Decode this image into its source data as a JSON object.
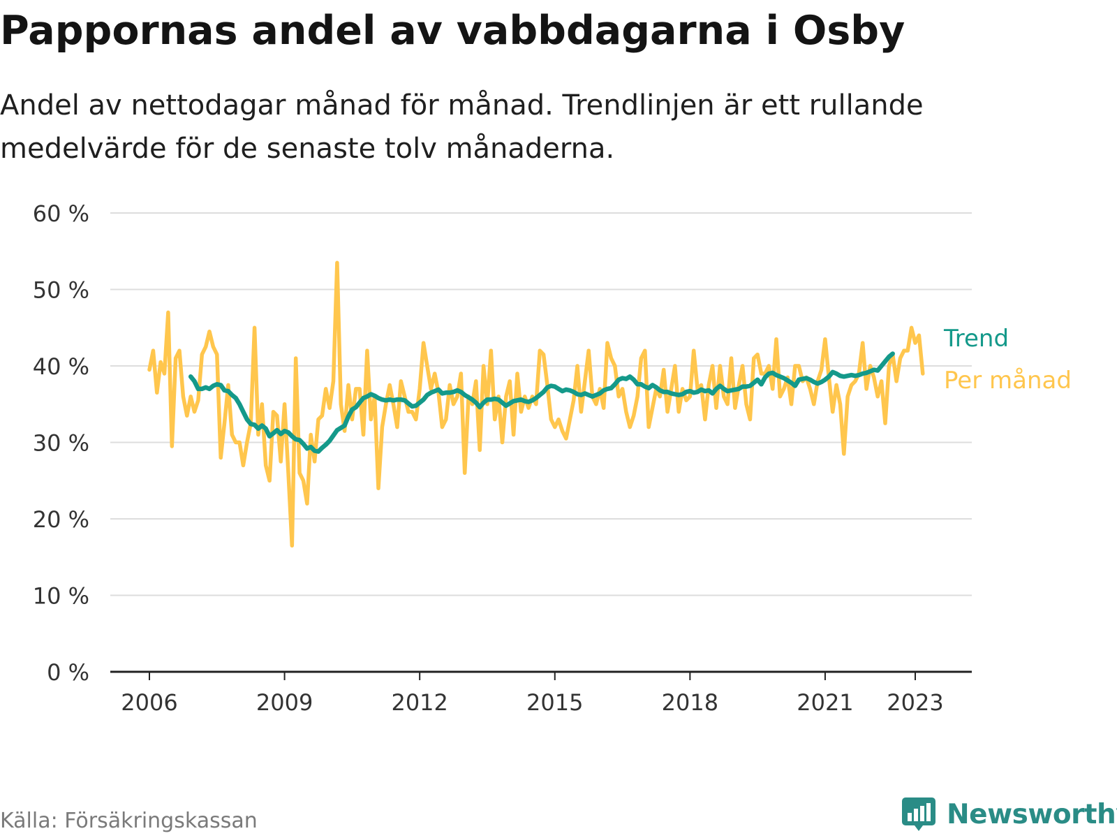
{
  "title": "Pappornas andel av vabbdagarna i Osby",
  "subtitle": "Andel av nettodagar månad för månad. Trendlinjen är ett rullande medelvärde för de senaste tolv månaderna.",
  "source": "Källa: Försäkringskassan",
  "brand": "Newsworthy",
  "colors": {
    "trend": "#14998a",
    "monthly": "#ffc64d",
    "grid": "#dddddd",
    "axis": "#222222",
    "brand": "#2a8c86"
  },
  "chart_data": {
    "type": "line",
    "title": "Pappornas andel av vabbdagarna i Osby",
    "xlabel": "",
    "ylabel": "",
    "xlim": [
      2006,
      2023.9
    ],
    "ylim": [
      0,
      60
    ],
    "x_ticks": [
      2006,
      2009,
      2012,
      2015,
      2018,
      2021,
      2023
    ],
    "x_tick_labels": [
      "2006",
      "2009",
      "2012",
      "2015",
      "2018",
      "2021",
      "2023"
    ],
    "y_ticks": [
      0,
      10,
      20,
      30,
      40,
      50,
      60
    ],
    "y_tick_labels": [
      "0 %",
      "10 %",
      "20 %",
      "30 %",
      "40 %",
      "50 %",
      "60 %"
    ],
    "grid": true,
    "legend": "direct labels at line ends (right)",
    "series": [
      {
        "name": "Per månad",
        "color": "#ffc64d",
        "start": "2006-01",
        "values": [
          39.5,
          42,
          36.5,
          40.5,
          39,
          47,
          29.5,
          41,
          42,
          36,
          33.5,
          36,
          34,
          35.5,
          41.5,
          42.5,
          44.5,
          42.5,
          41.5,
          28,
          32.5,
          37.5,
          31,
          30,
          30,
          27,
          30,
          32.5,
          45,
          31,
          35,
          27,
          25,
          34,
          33.5,
          27.5,
          35,
          26,
          16.5,
          41,
          26,
          25,
          22,
          31,
          27.5,
          33,
          33.5,
          37,
          34.5,
          38,
          53.5,
          35,
          31.5,
          37.5,
          33,
          37,
          37,
          31,
          42,
          33,
          36,
          24,
          32,
          35,
          37.5,
          35,
          32,
          38,
          36,
          34,
          34,
          33,
          37,
          43,
          40,
          37,
          39,
          36.5,
          32,
          33,
          37.5,
          35,
          36,
          39,
          26,
          36,
          35,
          38,
          29,
          40,
          35,
          42,
          33,
          36,
          30,
          36,
          38,
          31,
          39,
          34,
          36,
          34.5,
          36,
          35,
          42,
          41.5,
          37.5,
          33,
          32,
          33,
          31.5,
          30.5,
          33,
          35.5,
          40,
          34,
          38,
          42,
          36,
          35,
          37,
          34.5,
          43,
          41,
          40,
          36,
          37,
          34,
          32,
          33.5,
          36,
          41,
          42,
          32,
          34.5,
          37,
          36,
          39.5,
          34,
          37,
          40,
          34,
          37,
          35.5,
          36,
          42,
          37,
          37.5,
          33,
          37.5,
          40,
          34.5,
          40,
          36,
          35,
          41,
          34.5,
          37.5,
          40,
          35,
          33,
          41,
          41.5,
          39,
          39,
          40,
          37,
          43.5,
          36,
          37,
          38.5,
          35,
          40,
          40,
          38,
          38.5,
          37,
          35,
          38,
          39.5,
          43.5,
          38.5,
          34,
          37.5,
          35,
          28.5,
          36,
          37.5,
          38,
          39,
          43,
          37,
          40,
          38.5,
          36,
          38,
          32.5,
          40,
          41.5,
          38,
          41,
          42,
          42,
          45,
          43,
          44,
          39
        ]
      },
      {
        "name": "Trend",
        "color": "#14998a",
        "start": "2006-12",
        "values": [
          38.6,
          38,
          37,
          37,
          37.2,
          37,
          37.4,
          37.6,
          37.5,
          36.8,
          36.7,
          36.2,
          35.8,
          35,
          34,
          33,
          32.4,
          32.3,
          31.8,
          32.2,
          31.8,
          30.8,
          31.2,
          31.6,
          31.1,
          31.5,
          31.3,
          30.8,
          30.4,
          30.3,
          29.8,
          29.2,
          29.4,
          28.9,
          28.8,
          29.3,
          29.7,
          30.2,
          30.9,
          31.6,
          31.9,
          32.2,
          33.4,
          34.3,
          34.6,
          35.2,
          35.8,
          36,
          36.3,
          36.1,
          35.8,
          35.6,
          35.5,
          35.6,
          35.5,
          35.6,
          35.6,
          35.5,
          35.1,
          34.7,
          34.8,
          35.2,
          35.6,
          36.2,
          36.5,
          36.7,
          36.9,
          36.4,
          36.5,
          36.5,
          36.6,
          36.8,
          36.6,
          36.2,
          35.9,
          35.6,
          35.2,
          34.6,
          35.2,
          35.6,
          35.6,
          35.7,
          35.6,
          35.2,
          34.8,
          35.1,
          35.4,
          35.5,
          35.6,
          35.4,
          35.3,
          35.5,
          35.8,
          36.2,
          36.6,
          37.2,
          37.4,
          37.3,
          37,
          36.7,
          36.9,
          36.8,
          36.6,
          36.3,
          36.2,
          36.4,
          36.2,
          36,
          36.2,
          36.4,
          36.8,
          37,
          37.1,
          37.6,
          38.2,
          38.4,
          38.3,
          38.6,
          38.2,
          37.6,
          37.6,
          37.3,
          37.1,
          37.5,
          37.2,
          36.8,
          36.6,
          36.6,
          36.4,
          36.3,
          36.2,
          36.3,
          36.6,
          36.7,
          36.5,
          36.6,
          36.9,
          36.7,
          36.8,
          36.4,
          37,
          37.4,
          37,
          36.7,
          36.8,
          36.9,
          37,
          37.3,
          37.3,
          37.4,
          37.8,
          38.2,
          37.6,
          38.5,
          39,
          39.1,
          38.8,
          38.6,
          38.4,
          38.1,
          37.8,
          37.4,
          38.2,
          38.3,
          38.4,
          38.2,
          37.9,
          37.7,
          37.9,
          38.2,
          38.6,
          39.2,
          39,
          38.7,
          38.6,
          38.7,
          38.8,
          38.7,
          38.8,
          39,
          39.1,
          39.3,
          39.5,
          39.4,
          40,
          40.6,
          41.2,
          41.6
        ]
      }
    ]
  }
}
